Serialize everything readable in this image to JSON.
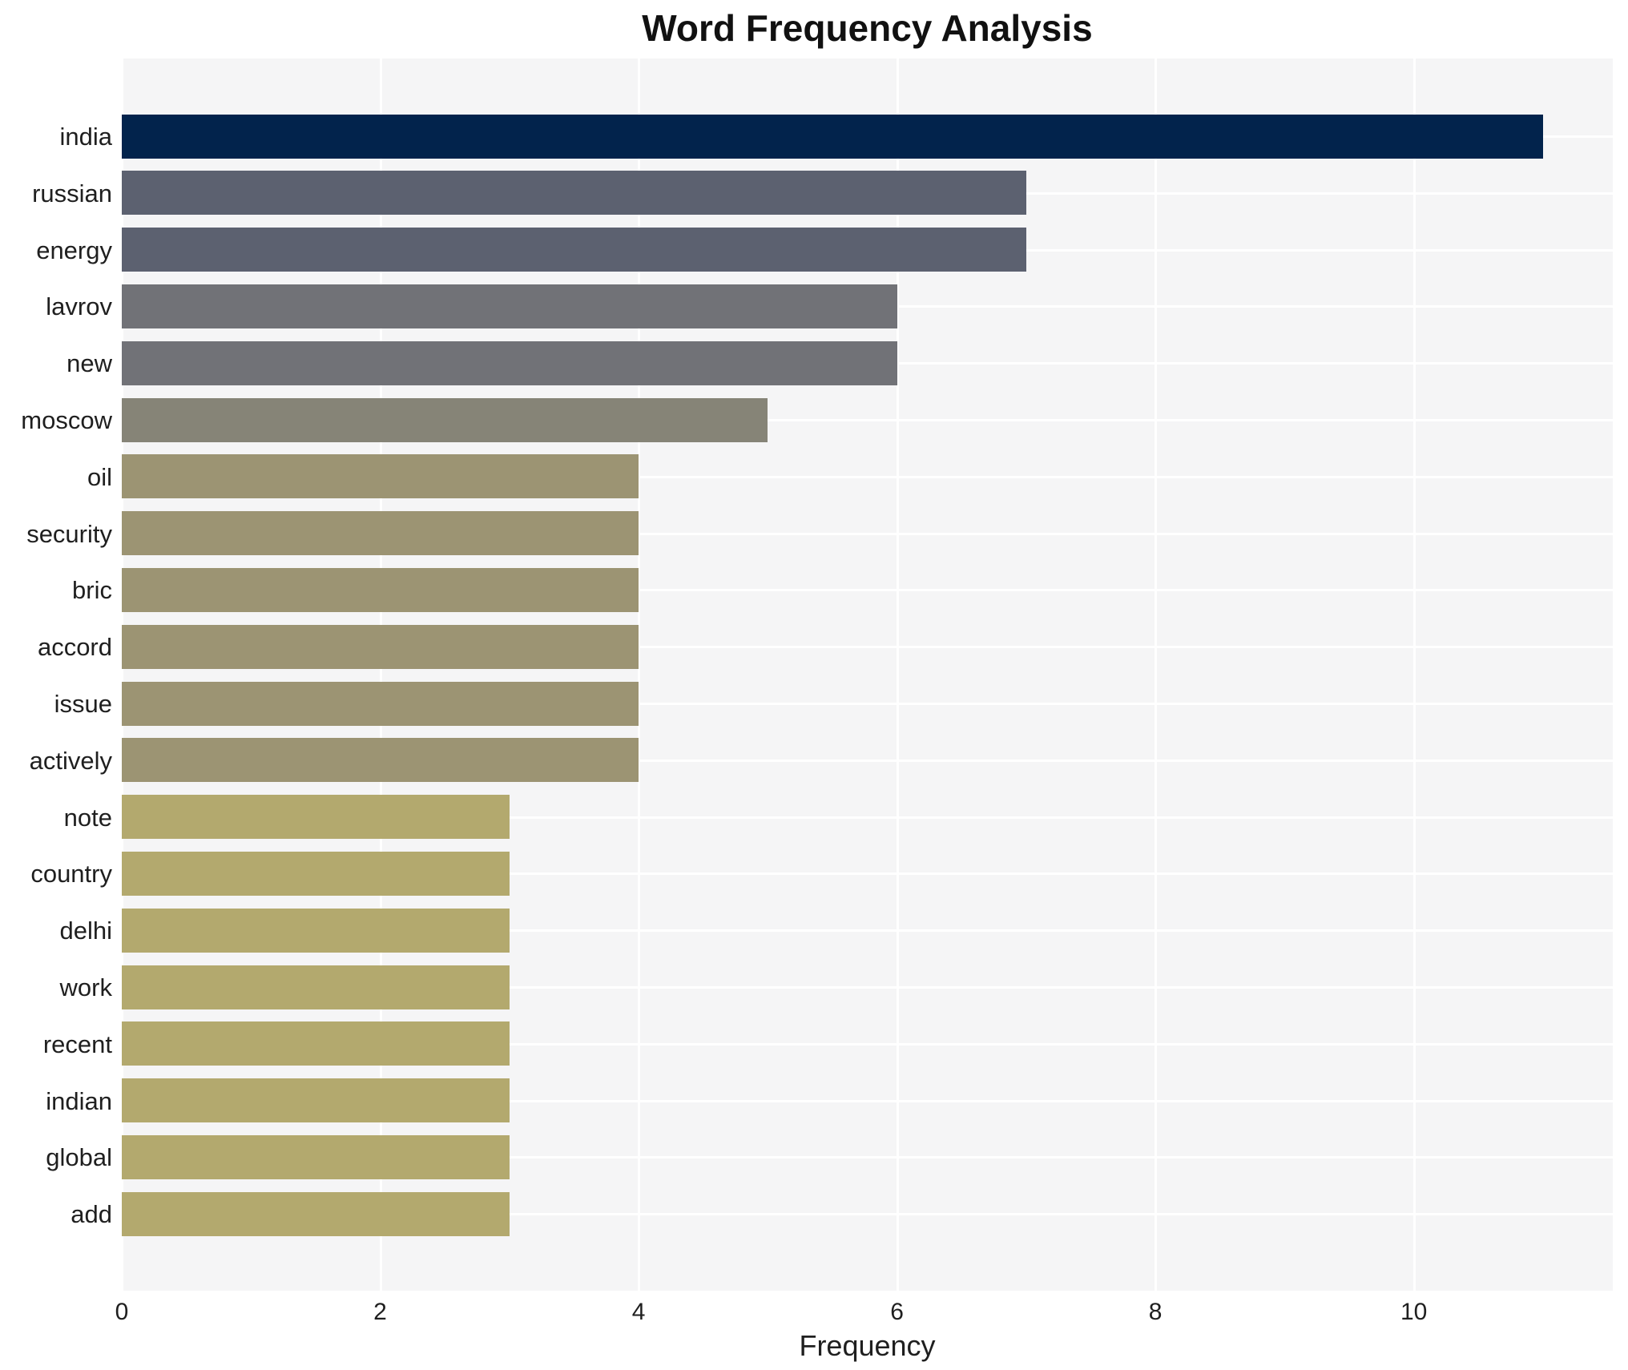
{
  "chart_data": {
    "type": "bar",
    "orientation": "horizontal",
    "title": "Word Frequency Analysis",
    "xlabel": "Frequency",
    "ylabel": "",
    "categories": [
      "india",
      "russian",
      "energy",
      "lavrov",
      "new",
      "moscow",
      "oil",
      "security",
      "bric",
      "accord",
      "issue",
      "actively",
      "note",
      "country",
      "delhi",
      "work",
      "recent",
      "indian",
      "global",
      "add"
    ],
    "values": [
      11,
      7,
      7,
      6,
      6,
      5,
      4,
      4,
      4,
      4,
      4,
      4,
      3,
      3,
      3,
      3,
      3,
      3,
      3,
      3
    ],
    "bar_colors": [
      "#02234c",
      "#5c6170",
      "#5c6170",
      "#717277",
      "#717277",
      "#868477",
      "#9c9473",
      "#9c9473",
      "#9c9473",
      "#9c9473",
      "#9c9473",
      "#9c9473",
      "#b3a96e",
      "#b3a96e",
      "#b3a96e",
      "#b3a96e",
      "#b3a96e",
      "#b3a96e",
      "#b3a96e",
      "#b3a96e"
    ],
    "x_ticks": [
      0,
      2,
      4,
      6,
      8,
      10
    ],
    "xlim": [
      0,
      11.54
    ],
    "grid": true,
    "legend": false,
    "plot_background": "#f5f5f6",
    "gridline_color": "#ffffff"
  }
}
